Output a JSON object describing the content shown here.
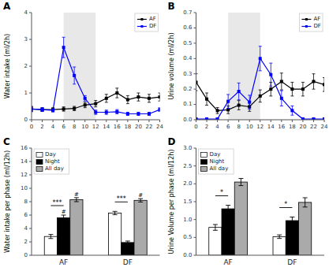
{
  "chart_data": [
    {
      "type": "line",
      "title": "A",
      "y_label": "Water intake (ml/2h)",
      "x": [
        0,
        2,
        4,
        6,
        8,
        10,
        12,
        14,
        16,
        18,
        20,
        22,
        24
      ],
      "series": [
        {
          "name": "AF",
          "color": "black",
          "marker": "square",
          "values": [
            0.4,
            0.38,
            0.38,
            0.4,
            0.42,
            0.55,
            0.6,
            0.8,
            1.0,
            0.75,
            0.85,
            0.8,
            0.85
          ],
          "errors": [
            0.1,
            0.07,
            0.07,
            0.08,
            0.08,
            0.1,
            0.12,
            0.15,
            0.18,
            0.15,
            0.15,
            0.15,
            0.15
          ]
        },
        {
          "name": "DF",
          "color": "blue",
          "marker": "square",
          "values": [
            0.4,
            0.38,
            0.35,
            2.7,
            1.65,
            0.8,
            0.28,
            0.28,
            0.3,
            0.22,
            0.22,
            0.22,
            0.38
          ],
          "errors": [
            0.08,
            0.07,
            0.06,
            0.38,
            0.32,
            0.1,
            0.08,
            0.08,
            0.08,
            0.06,
            0.06,
            0.06,
            0.07
          ]
        }
      ],
      "xlim": [
        0,
        24
      ],
      "xticks": [
        0,
        2,
        4,
        6,
        8,
        10,
        12,
        14,
        16,
        18,
        20,
        22,
        24
      ],
      "ylim": [
        0,
        4
      ],
      "yticks": [
        0,
        1,
        2,
        3,
        4
      ],
      "shade": {
        "start": 6,
        "end": 12,
        "color": "#e8e8e8"
      },
      "legend": "top-right",
      "grid": false
    },
    {
      "type": "line",
      "title": "B",
      "y_label": "Urine volume (ml/2h)",
      "x": [
        0,
        2,
        4,
        6,
        8,
        10,
        12,
        14,
        16,
        18,
        20,
        22,
        24
      ],
      "series": [
        {
          "name": "AF",
          "color": "black",
          "marker": "square",
          "values": [
            0.245,
            0.135,
            0.06,
            0.065,
            0.095,
            0.085,
            0.155,
            0.2,
            0.25,
            0.2,
            0.2,
            0.25,
            0.23
          ],
          "errors": [
            0.055,
            0.04,
            0.02,
            0.025,
            0.03,
            0.03,
            0.04,
            0.045,
            0.055,
            0.045,
            0.045,
            0.05,
            0.045
          ]
        },
        {
          "name": "DF",
          "color": "blue",
          "marker": "square",
          "values": [
            0.005,
            0.005,
            0.005,
            0.12,
            0.185,
            0.115,
            0.4,
            0.295,
            0.14,
            0.06,
            0.005,
            0.005,
            0.005
          ],
          "errors": [
            0.005,
            0.005,
            0.005,
            0.045,
            0.055,
            0.045,
            0.08,
            0.075,
            0.05,
            0.03,
            0.005,
            0.005,
            0.005
          ]
        }
      ],
      "xlim": [
        0,
        24
      ],
      "xticks": [
        0,
        2,
        4,
        6,
        8,
        10,
        12,
        14,
        16,
        18,
        20,
        22,
        24
      ],
      "ylim": [
        0,
        0.7
      ],
      "yticks": [
        {
          "value": 0.0,
          "label": "0.0"
        },
        0.1,
        0.2,
        0.3,
        0.4,
        0.5,
        0.6,
        0.7
      ],
      "shade": {
        "start": 6,
        "end": 12,
        "color": "#e8e8e8"
      },
      "legend": "top-right",
      "grid": false
    },
    {
      "type": "bar",
      "title": "C",
      "y_label": "Water intake per phase (ml/12h)",
      "categories": [
        "AF",
        "DF"
      ],
      "series": [
        {
          "name": "Day",
          "color": "white",
          "values": [
            2.8,
            6.3
          ],
          "errors": [
            0.3,
            0.25
          ]
        },
        {
          "name": "Night",
          "color": "black",
          "values": [
            5.6,
            1.9
          ],
          "errors": [
            0.4,
            0.22
          ]
        },
        {
          "name": "All day",
          "color": "#aaaaaa",
          "values": [
            8.3,
            8.2
          ],
          "errors": [
            0.3,
            0.25
          ]
        }
      ],
      "ylim": [
        0,
        16
      ],
      "yticks": [
        0,
        2,
        4,
        6,
        8,
        10,
        12,
        14,
        16
      ],
      "annotations": [
        {
          "text": "***",
          "category": 0,
          "series": [
            0,
            1
          ]
        },
        {
          "text": "***",
          "category": 1,
          "series": [
            0,
            1
          ]
        },
        {
          "text": "#",
          "category": 0,
          "series": [
            1
          ]
        },
        {
          "text": "#",
          "category": 0,
          "series": [
            2
          ]
        },
        {
          "text": "#",
          "category": 1,
          "series": [
            2
          ]
        }
      ],
      "legend": "top-left",
      "grid": false
    },
    {
      "type": "bar",
      "title": "D",
      "y_label": "Urine Volume per phase (ml/12h)",
      "categories": [
        "AF",
        "DF"
      ],
      "series": [
        {
          "name": "Day",
          "color": "white",
          "values": [
            0.78,
            0.52
          ],
          "errors": [
            0.08,
            0.05
          ]
        },
        {
          "name": "Night",
          "color": "black",
          "values": [
            1.3,
            0.97
          ],
          "errors": [
            0.1,
            0.1
          ]
        },
        {
          "name": "All day",
          "color": "#aaaaaa",
          "values": [
            2.05,
            1.48
          ],
          "errors": [
            0.1,
            0.13
          ]
        }
      ],
      "ylim": [
        0.0,
        3.0
      ],
      "yticks": [
        {
          "value": 0.0,
          "label": "0.0"
        },
        0.5,
        {
          "value": 1.0,
          "label": "1.0"
        },
        1.5,
        {
          "value": 2.0,
          "label": "2.0"
        },
        2.5,
        {
          "value": 3.0,
          "label": "3.0"
        }
      ],
      "annotations": [
        {
          "text": "*",
          "category": 0,
          "series": [
            0,
            1
          ]
        },
        {
          "text": "*",
          "category": 1,
          "series": [
            0,
            1
          ]
        }
      ],
      "legend": "top-left",
      "grid": false
    }
  ]
}
